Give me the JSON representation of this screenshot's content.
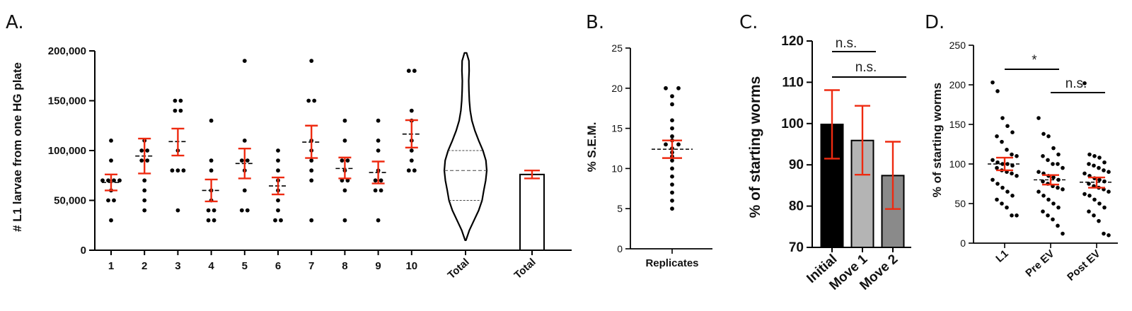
{
  "chart_data": [
    {
      "panel": "A.",
      "type": "scatter",
      "ylabel": "# L1 larvae from one HG plate",
      "ylim": [
        0,
        200000
      ],
      "yticks": [
        0,
        50000,
        100000,
        150000,
        200000
      ],
      "ytick_labels": [
        "0",
        "50,000",
        "100,000",
        "150,000",
        "200,000"
      ],
      "categories": [
        "1",
        "2",
        "3",
        "4",
        "5",
        "6",
        "7",
        "8",
        "9",
        "10"
      ],
      "points": [
        [
          110000,
          90000,
          70000,
          70000,
          70000,
          70000,
          60000,
          50000,
          50000,
          30000
        ],
        [
          110000,
          100000,
          100000,
          90000,
          90000,
          70000,
          60000,
          50000,
          40000
        ],
        [
          150000,
          150000,
          140000,
          140000,
          100000,
          80000,
          80000,
          80000,
          40000
        ],
        [
          130000,
          90000,
          80000,
          60000,
          50000,
          40000,
          40000,
          30000,
          30000
        ],
        [
          190000,
          110000,
          90000,
          90000,
          80000,
          60000,
          40000,
          40000
        ],
        [
          100000,
          90000,
          80000,
          70000,
          60000,
          50000,
          40000,
          30000,
          30000
        ],
        [
          190000,
          150000,
          150000,
          110000,
          100000,
          90000,
          80000,
          70000,
          30000
        ],
        [
          130000,
          110000,
          90000,
          90000,
          80000,
          70000,
          70000,
          60000,
          30000
        ],
        [
          130000,
          110000,
          100000,
          80000,
          70000,
          70000,
          60000,
          60000,
          30000
        ],
        [
          180000,
          180000,
          140000,
          130000,
          110000,
          100000,
          90000,
          80000,
          80000
        ]
      ],
      "mean": [
        68000,
        94500,
        109000,
        60000,
        87000,
        64500,
        108500,
        82000,
        78000,
        116500
      ],
      "sem_low": [
        60000,
        77000,
        95000,
        49000,
        72000,
        56000,
        92500,
        72000,
        67000,
        103000
      ],
      "sem_high": [
        76000,
        112000,
        122000,
        71000,
        102000,
        73000,
        125000,
        93000,
        89000,
        130500
      ],
      "violin": {
        "label": "Total",
        "min": 10000,
        "max": 198000,
        "quartiles": [
          50000,
          80000,
          100000
        ],
        "density": [
          [
            10000,
            0.02
          ],
          [
            20000,
            0.18
          ],
          [
            30000,
            0.4
          ],
          [
            40000,
            0.62
          ],
          [
            50000,
            0.78
          ],
          [
            60000,
            0.86
          ],
          [
            70000,
            0.95
          ],
          [
            80000,
            1.0
          ],
          [
            90000,
            0.96
          ],
          [
            100000,
            0.82
          ],
          [
            110000,
            0.62
          ],
          [
            120000,
            0.44
          ],
          [
            130000,
            0.3
          ],
          [
            140000,
            0.22
          ],
          [
            150000,
            0.18
          ],
          [
            160000,
            0.16
          ],
          [
            170000,
            0.15
          ],
          [
            180000,
            0.17
          ],
          [
            190000,
            0.16
          ],
          [
            198000,
            0.05
          ]
        ]
      },
      "bar": {
        "label": "Total",
        "value": 76000,
        "sem_low": 72000,
        "sem_high": 80000
      }
    },
    {
      "panel": "B.",
      "type": "scatter",
      "ylabel": "% S.E.M.",
      "ylim": [
        0,
        25
      ],
      "yticks": [
        0,
        5,
        10,
        15,
        20,
        25
      ],
      "categories": [
        "Replicates"
      ],
      "points": [
        20,
        20,
        19,
        18,
        16,
        15,
        14,
        13.5,
        13,
        13,
        12.5,
        12,
        11.5,
        11,
        10,
        9,
        8,
        7,
        6,
        5
      ],
      "mean": 12.4,
      "sem_low": 11.3,
      "sem_high": 13.5
    },
    {
      "panel": "C.",
      "type": "bar",
      "ylabel": "% of starting worms",
      "ylim": [
        70,
        120
      ],
      "yticks": [
        70,
        80,
        90,
        100,
        110,
        120
      ],
      "categories": [
        "Initial",
        "Move 1",
        "Move 2"
      ],
      "values": [
        99.8,
        95.9,
        87.4
      ],
      "err_low": [
        91.5,
        87.6,
        79.3
      ],
      "err_high": [
        108.1,
        104.3,
        95.6
      ],
      "colors": [
        "#000000",
        "#b4b4b4",
        "#8a8a8a"
      ],
      "annotations": [
        {
          "text": "n.s.",
          "from": "Initial",
          "to": "Move 1"
        },
        {
          "text": "n.s.",
          "from": "Initial",
          "to": "Move 2"
        }
      ]
    },
    {
      "panel": "D.",
      "type": "scatter",
      "ylabel": "% of starting worms",
      "ylim": [
        0,
        250
      ],
      "yticks": [
        0,
        50,
        100,
        150,
        200,
        250
      ],
      "categories": [
        "L1",
        "Pre EV",
        "Post EV"
      ],
      "points": [
        [
          203,
          192,
          158,
          148,
          140,
          135,
          128,
          118,
          112,
          110,
          105,
          102,
          100,
          100,
          98,
          95,
          92,
          90,
          88,
          85,
          80,
          75,
          70,
          65,
          60,
          55,
          50,
          45,
          35,
          35
        ],
        [
          158,
          138,
          135,
          120,
          112,
          110,
          105,
          100,
          100,
          95,
          90,
          88,
          85,
          83,
          80,
          78,
          75,
          72,
          70,
          68,
          65,
          60,
          55,
          50,
          45,
          40,
          35,
          30,
          22,
          12
        ],
        [
          202,
          112,
          110,
          108,
          102,
          100,
          98,
          95,
          92,
          90,
          88,
          85,
          82,
          80,
          78,
          75,
          72,
          70,
          68,
          65,
          62,
          60,
          55,
          50,
          45,
          40,
          35,
          28,
          12,
          10
        ]
      ],
      "mean": [
        100,
        80,
        77
      ],
      "sem_low": [
        92,
        74,
        70
      ],
      "sem_high": [
        108,
        86,
        83
      ],
      "annotations": [
        {
          "text": "*",
          "from": "L1",
          "to": "Pre EV"
        },
        {
          "text": "n.s.",
          "from": "Pre EV",
          "to": "Post EV"
        }
      ]
    }
  ],
  "colors": {
    "error": "#ee2a10",
    "ink": "#000000"
  }
}
